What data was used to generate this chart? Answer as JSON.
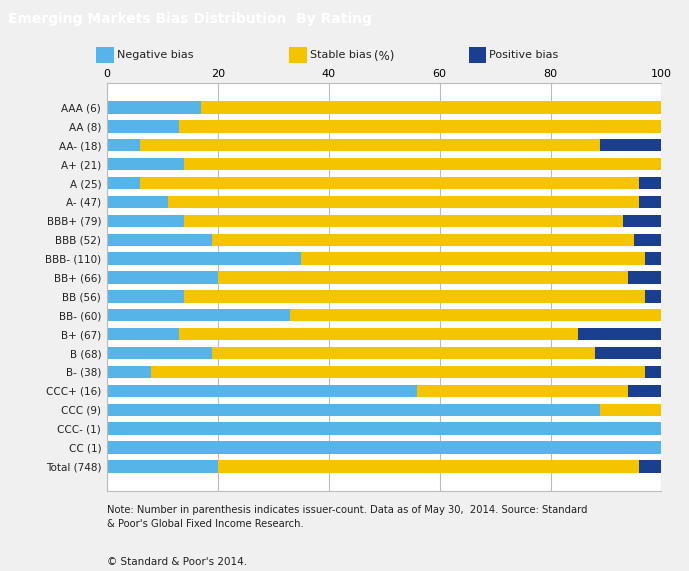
{
  "title": "Emerging Markets Bias Distribution  By Rating",
  "title_bg_color": "#666666",
  "title_text_color": "#ffffff",
  "categories": [
    "AAA (6)",
    "AA (8)",
    "AA- (18)",
    "A+ (21)",
    "A (25)",
    "A- (47)",
    "BBB+ (79)",
    "BBB (52)",
    "BBB- (110)",
    "BB+ (66)",
    "BB (56)",
    "BB- (60)",
    "B+ (67)",
    "B (68)",
    "B- (38)",
    "CCC+ (16)",
    "CCC (9)",
    "CCC- (1)",
    "CC (1)",
    "Total (748)"
  ],
  "negative_bias": [
    17,
    13,
    6,
    14,
    6,
    11,
    14,
    19,
    35,
    20,
    14,
    33,
    13,
    19,
    8,
    56,
    89,
    100,
    100,
    20
  ],
  "stable_bias": [
    83,
    87,
    83,
    86,
    90,
    85,
    79,
    76,
    62,
    74,
    83,
    67,
    72,
    69,
    89,
    38,
    11,
    0,
    0,
    76
  ],
  "positive_bias": [
    0,
    0,
    11,
    0,
    4,
    4,
    7,
    5,
    3,
    6,
    3,
    0,
    15,
    12,
    3,
    6,
    0,
    0,
    0,
    4
  ],
  "neg_color": "#56b4e9",
  "stable_color": "#f5c400",
  "pos_color": "#1a3f8f",
  "note": "Note: Number in parenthesis indicates issuer-count. Data as of May 30,  2014. Source: Standard\n& Poor's Global Fixed Income Research.",
  "copyright": "© Standard & Poor's 2014.",
  "bg_color": "#f0f0f0",
  "plot_bg_color": "#ffffff",
  "grid_color": "#bbbbbb",
  "xlim": [
    0,
    100
  ],
  "xticks": [
    0,
    20,
    40,
    60,
    80,
    100
  ],
  "pct_label": "(%)"
}
